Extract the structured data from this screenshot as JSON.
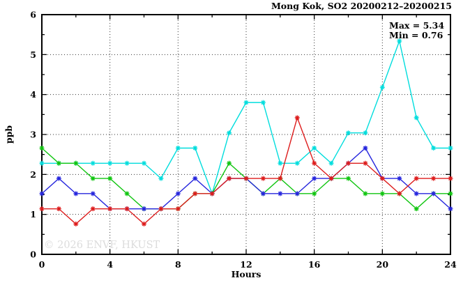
{
  "chart_data": {
    "type": "line",
    "title": "Mong Kok, SO2 20200212–20200215",
    "xlabel": "Hours",
    "ylabel": "ppb",
    "xlim": [
      0,
      24
    ],
    "ylim": [
      0,
      6
    ],
    "x_major_ticks": [
      0,
      4,
      8,
      12,
      16,
      20,
      24
    ],
    "x_minor_step": 2,
    "y_major_ticks": [
      0,
      1,
      2,
      3,
      4,
      5,
      6
    ],
    "y_minor_step": 0.5,
    "grid": "dotted lines at major ticks, mirrored inward ticks on all four borders",
    "legend_position": "none",
    "annotations": {
      "max_label": "Max = 5.34",
      "min_label": "Min = 0.76"
    },
    "watermark": "© 2026 ENVF, HKUST",
    "x": [
      0,
      1,
      2,
      3,
      4,
      5,
      6,
      7,
      8,
      9,
      10,
      11,
      12,
      13,
      14,
      15,
      16,
      17,
      18,
      19,
      20,
      21,
      22,
      23,
      24
    ],
    "series": [
      {
        "name": "cyan",
        "color": "#00dddd",
        "values": [
          2.28,
          2.28,
          2.28,
          2.28,
          2.28,
          2.28,
          2.28,
          1.9,
          2.66,
          2.66,
          1.52,
          3.04,
          3.8,
          3.8,
          2.28,
          2.28,
          2.66,
          2.28,
          3.04,
          3.04,
          4.18,
          5.34,
          3.42,
          2.66,
          2.66
        ]
      },
      {
        "name": "green",
        "color": "#10c510",
        "values": [
          2.66,
          2.28,
          2.28,
          1.9,
          1.9,
          1.52,
          1.14,
          1.14,
          1.14,
          1.52,
          1.52,
          2.28,
          1.9,
          1.52,
          1.9,
          1.52,
          1.52,
          1.9,
          1.9,
          1.52,
          1.52,
          1.52,
          1.14,
          1.52,
          1.52
        ]
      },
      {
        "name": "blue",
        "color": "#2525dd",
        "values": [
          1.52,
          1.9,
          1.52,
          1.52,
          1.14,
          1.14,
          1.14,
          1.14,
          1.52,
          1.9,
          1.52,
          1.9,
          1.9,
          1.52,
          1.52,
          1.52,
          1.9,
          1.9,
          2.28,
          2.66,
          1.9,
          1.9,
          1.52,
          1.52,
          1.14
        ]
      },
      {
        "name": "red",
        "color": "#dd1c1c",
        "values": [
          1.14,
          1.14,
          0.76,
          1.14,
          1.14,
          1.14,
          0.76,
          1.14,
          1.14,
          1.52,
          1.52,
          1.9,
          1.9,
          1.9,
          1.9,
          3.42,
          2.28,
          1.9,
          2.28,
          2.28,
          1.9,
          1.52,
          1.9,
          1.9,
          1.9
        ]
      }
    ]
  }
}
